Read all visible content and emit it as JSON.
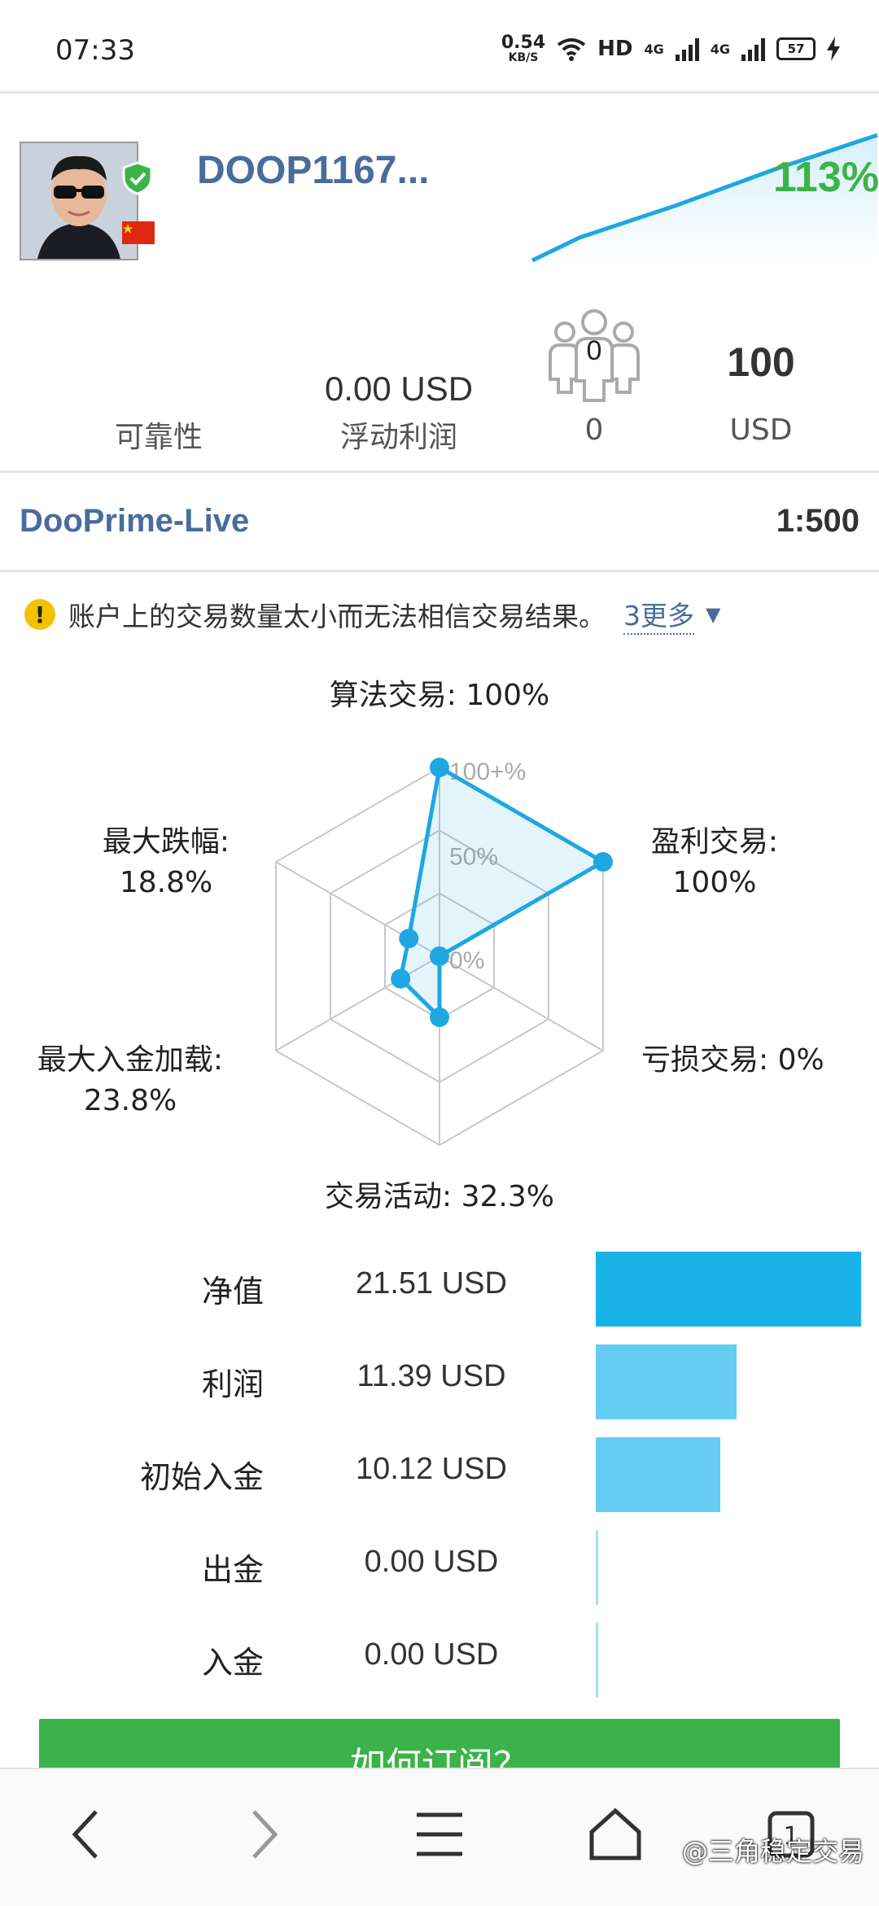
{
  "status_bar": {
    "time": "07:33",
    "net_speed": "0.54",
    "net_unit": "KB/S",
    "hd": "HD",
    "net_type_1": "4G",
    "net_type_2": "4G",
    "battery": "57"
  },
  "profile": {
    "account_name": "DOOP1167...",
    "growth": "113%",
    "growth_color": "#3cb34a",
    "curve_color": "#1ea7e0"
  },
  "stats": {
    "reliability_label": "可靠性",
    "floating_profit_value": "0.00 USD",
    "floating_profit_label": "浮动利润",
    "subscribers_count": "0",
    "subscribers_label": "0",
    "price_value": "100",
    "price_label": "USD"
  },
  "server": {
    "name": "DooPrime-Live",
    "leverage": "1:500"
  },
  "warning": {
    "text": "账户上的交易数量太小而无法相信交易结果。",
    "more": "3更多"
  },
  "chart_data": [
    {
      "type": "radar",
      "axes": [
        "算法交易",
        "盈利交易",
        "亏损交易",
        "交易活动",
        "最大入金加载",
        "最大跌幅"
      ],
      "axis_labels": [
        [
          "算法交易: 100%"
        ],
        [
          "盈利交易:",
          "100%"
        ],
        [
          "亏损交易: 0%"
        ],
        [
          "交易活动: 32.3%"
        ],
        [
          "最大入金加载:",
          "23.8%"
        ],
        [
          "最大跌幅:",
          "18.8%"
        ]
      ],
      "values": [
        100,
        100,
        0,
        32.3,
        23.8,
        18.8
      ],
      "scale_labels": [
        "100+%",
        "50%",
        "0%"
      ],
      "range": [
        0,
        100
      ],
      "color": "#1ea7e0"
    },
    {
      "type": "bar",
      "categories": [
        "净值",
        "利润",
        "初始入金",
        "出金",
        "入金"
      ],
      "values": [
        21.51,
        11.39,
        10.12,
        0.0,
        0.0
      ],
      "value_labels": [
        "21.51 USD",
        "11.39 USD",
        "10.12 USD",
        "0.00 USD",
        "0.00 USD"
      ],
      "colors": [
        "#1ab3e8",
        "#66cdf2",
        "#66cdf2",
        "#66cdf2",
        "#66cdf2"
      ]
    }
  ],
  "subscribe_button": "如何订阅？",
  "watermark": "@三角稳定交易"
}
